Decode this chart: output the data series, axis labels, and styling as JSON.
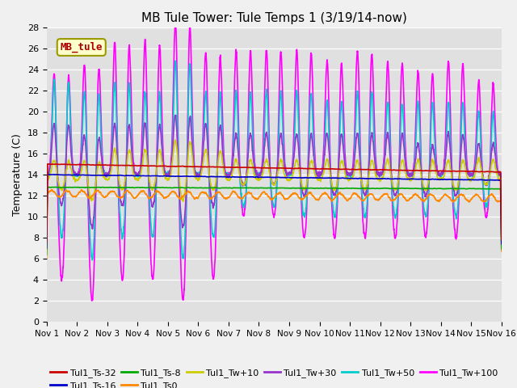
{
  "title": "MB Tule Tower: Tule Temps 1 (3/19/14-now)",
  "ylabel": "Temperature (C)",
  "legend_label": "MB_tule",
  "ylim": [
    0,
    28
  ],
  "yticks": [
    0,
    2,
    4,
    6,
    8,
    10,
    12,
    14,
    16,
    18,
    20,
    22,
    24,
    26,
    28
  ],
  "xtick_labels": [
    "Nov 1",
    "Nov 2",
    "Nov 3",
    "Nov 4",
    "Nov 5",
    "Nov 6",
    "Nov 7",
    "Nov 8",
    "Nov 9",
    "Nov 10",
    "Nov 11",
    "Nov 12",
    "Nov 13",
    "Nov 14",
    "Nov 15",
    "Nov 16"
  ],
  "series": {
    "Tul1_Ts-32": {
      "color": "#cc0000",
      "lw": 1.2
    },
    "Tul1_Ts-16": {
      "color": "#0000cc",
      "lw": 1.2
    },
    "Tul1_Ts-8": {
      "color": "#00aa00",
      "lw": 1.2
    },
    "Tul1_Ts0": {
      "color": "#ff8800",
      "lw": 1.2
    },
    "Tul1_Tw+10": {
      "color": "#cccc00",
      "lw": 1.2
    },
    "Tul1_Tw+30": {
      "color": "#9933cc",
      "lw": 1.2
    },
    "Tul1_Tw+50": {
      "color": "#00cccc",
      "lw": 1.2
    },
    "Tul1_Tw+100": {
      "color": "#ff00ff",
      "lw": 1.2
    }
  },
  "bg_color": "#e0e0e0",
  "fig_color": "#f0f0f0",
  "title_fontsize": 11,
  "axis_fontsize": 9,
  "tick_fontsize": 8,
  "legend_fontsize": 8
}
